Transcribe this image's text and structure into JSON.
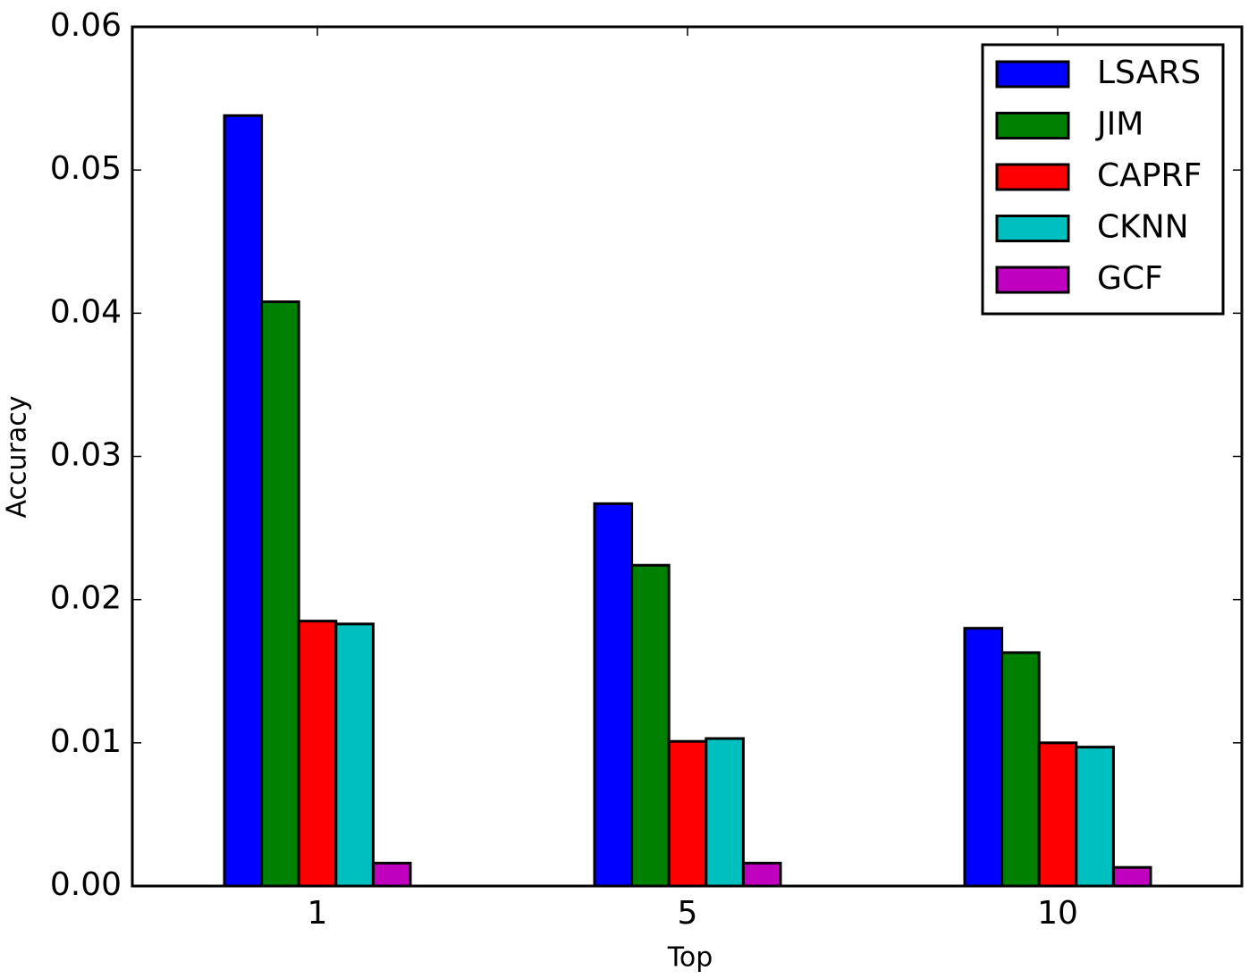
{
  "chart_data": {
    "type": "bar",
    "x_label": "Top",
    "y_label": "Accuracy",
    "categories": [
      "1",
      "5",
      "10"
    ],
    "series": [
      {
        "name": "LSARS",
        "color": "#0000ff",
        "values": [
          0.0538,
          0.0267,
          0.018
        ]
      },
      {
        "name": "JIM",
        "color": "#008000",
        "values": [
          0.0408,
          0.0224,
          0.0163
        ]
      },
      {
        "name": "CAPRF",
        "color": "#ff0000",
        "values": [
          0.0185,
          0.0101,
          0.01
        ]
      },
      {
        "name": "CKNN",
        "color": "#00bfbf",
        "values": [
          0.0183,
          0.0103,
          0.0097
        ]
      },
      {
        "name": "GCF",
        "color": "#bf00bf",
        "values": [
          0.0016,
          0.0016,
          0.0013
        ]
      }
    ],
    "ylim": [
      0,
      0.06
    ],
    "yticks": [
      {
        "value": 0,
        "label": "0.00"
      },
      {
        "value": 0.01,
        "label": "0.01"
      },
      {
        "value": 0.02,
        "label": "0.02"
      },
      {
        "value": 0.03,
        "label": "0.03"
      },
      {
        "value": 0.04,
        "label": "0.04"
      },
      {
        "value": 0.05,
        "label": "0.05"
      },
      {
        "value": 0.06,
        "label": "0.06"
      }
    ],
    "legend": "upper right"
  }
}
